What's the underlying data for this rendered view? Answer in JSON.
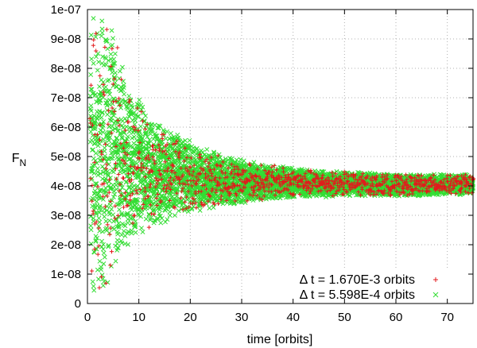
{
  "chart_data": {
    "type": "scatter",
    "title": "",
    "xlabel": "time [orbits]",
    "ylabel_main": "F",
    "ylabel_sub": "N",
    "xlim": [
      0,
      75
    ],
    "ylim": [
      0,
      1e-07
    ],
    "x_ticks": [
      0,
      10,
      20,
      30,
      40,
      50,
      60,
      70
    ],
    "x_tick_labels": [
      "0",
      "10",
      "20",
      "30",
      "40",
      "50",
      "60",
      "70"
    ],
    "y_ticks": [
      0,
      1e-08,
      2e-08,
      3e-08,
      4e-08,
      5e-08,
      6e-08,
      7e-08,
      8e-08,
      9e-08,
      1e-07
    ],
    "y_tick_labels": [
      "0",
      "1e-08",
      "2e-08",
      "3e-08",
      "4e-08",
      "5e-08",
      "6e-08",
      "7e-08",
      "8e-08",
      "9e-08",
      "1e-07"
    ],
    "grid": true,
    "legend_position": "bottom-right",
    "series": [
      {
        "name": "Δ t = 1.670E-3 orbits",
        "marker": "plus",
        "color": "#e31a1c",
        "x": [
          1,
          2,
          3,
          4,
          5,
          6,
          8,
          10,
          12,
          15,
          20,
          25,
          30,
          35,
          40,
          45,
          50,
          55,
          60,
          65,
          70,
          75
        ],
        "upper": [
          1e-07,
          1e-07,
          1e-07,
          1e-07,
          9.5e-08,
          8.5e-08,
          7.5e-08,
          6.9e-08,
          6.4e-08,
          6e-08,
          5.5e-08,
          5.1e-08,
          4.9e-08,
          4.75e-08,
          4.65e-08,
          4.55e-08,
          4.5e-08,
          4.45e-08,
          4.4e-08,
          4.4e-08,
          4.4e-08,
          4.4e-08
        ],
        "lower": [
          0,
          0,
          0,
          5e-09,
          1.2e-08,
          1.6e-08,
          2e-08,
          2.3e-08,
          2.5e-08,
          2.8e-08,
          3.1e-08,
          3.3e-08,
          3.45e-08,
          3.55e-08,
          3.6e-08,
          3.65e-08,
          3.65e-08,
          3.65e-08,
          3.65e-08,
          3.7e-08,
          3.7e-08,
          3.7e-08
        ]
      },
      {
        "name": "Δ t = 5.598E-4 orbits",
        "marker": "cross",
        "color": "#33dd33",
        "x": [
          1,
          2,
          3,
          4,
          5,
          6,
          8,
          10,
          12,
          15,
          20,
          25,
          30,
          35,
          40,
          45,
          50,
          55,
          60,
          65,
          70,
          75
        ],
        "upper": [
          1e-07,
          1e-07,
          1e-07,
          1e-07,
          9.6e-08,
          8.6e-08,
          7.6e-08,
          7e-08,
          6.5e-08,
          6.1e-08,
          5.55e-08,
          5.15e-08,
          4.9e-08,
          4.75e-08,
          4.65e-08,
          4.55e-08,
          4.5e-08,
          4.45e-08,
          4.4e-08,
          4.4e-08,
          4.4e-08,
          4.4e-08
        ],
        "lower": [
          0,
          0,
          0,
          4e-09,
          1.1e-08,
          1.5e-08,
          1.9e-08,
          2.2e-08,
          2.45e-08,
          2.75e-08,
          3.05e-08,
          3.25e-08,
          3.4e-08,
          3.5e-08,
          3.6e-08,
          3.6e-08,
          3.65e-08,
          3.65e-08,
          3.65e-08,
          3.65e-08,
          3.7e-08,
          3.7e-08
        ]
      }
    ]
  }
}
